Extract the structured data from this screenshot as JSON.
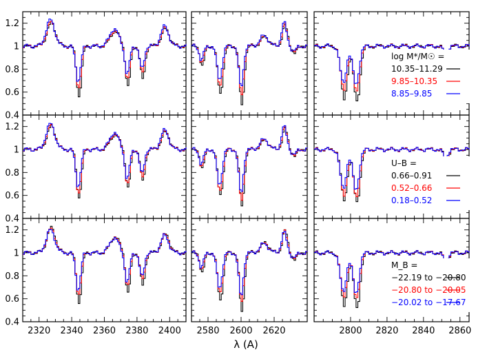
{
  "chart_data": {
    "type": "line",
    "xlabel": "λ (A)",
    "ylabel": "",
    "ylim": [
      0.4,
      1.3
    ],
    "yticks": [
      "0.4",
      "0.6",
      "0.8",
      "1",
      "1.2"
    ],
    "columns": [
      {
        "xlim": [
          2310,
          2410
        ],
        "xticks": [
          2320,
          2340,
          2360,
          2380,
          2400
        ],
        "features": [
          [
            2327,
            0.2,
            2.6
          ],
          [
            2344,
            -0.38,
            1.5
          ],
          [
            2366,
            0.13,
            2.8
          ],
          [
            2374,
            -0.31,
            1.4
          ],
          [
            2383,
            -0.25,
            1.4
          ],
          [
            2397,
            0.15,
            2.4
          ]
        ]
      },
      {
        "xlim": [
          2570,
          2640
        ],
        "xticks": [
          2580,
          2600,
          2620
        ],
        "features": [
          [
            2576,
            -0.15,
            1.3
          ],
          [
            2587,
            -0.36,
            1.6
          ],
          [
            2600,
            -0.45,
            1.4
          ],
          [
            2614,
            0.08,
            2.5
          ],
          [
            2626,
            0.18,
            1.5
          ],
          [
            2632,
            -0.05,
            1.5
          ]
        ]
      },
      {
        "xlim": [
          2780,
          2865
        ],
        "xticks": [
          2800,
          2820,
          2840,
          2860
        ],
        "features": [
          [
            2796,
            -0.4,
            1.7
          ],
          [
            2803,
            -0.42,
            1.7
          ],
          [
            2852,
            -0.1,
            1.2
          ]
        ]
      }
    ],
    "rows": [
      {
        "legend_title": "log M*/M☉ =",
        "series": [
          {
            "name": "10.35–11.29",
            "color": "#000000",
            "depth": 1.15,
            "emission": 0.0
          },
          {
            "name": "9.85–10.35",
            "color": "#ff0000",
            "depth": 0.95,
            "emission": 0.05
          },
          {
            "name": "8.85–9.85",
            "color": "#0000ff",
            "depth": 0.8,
            "emission": 0.15
          }
        ]
      },
      {
        "legend_title": "U–B =",
        "series": [
          {
            "name": "0.66–0.91",
            "color": "#000000",
            "depth": 1.1,
            "emission": 0.0
          },
          {
            "name": "0.52–0.66",
            "color": "#ff0000",
            "depth": 1.0,
            "emission": 0.05
          },
          {
            "name": "0.18–0.52",
            "color": "#0000ff",
            "depth": 0.85,
            "emission": 0.12
          }
        ]
      },
      {
        "legend_title": "M_B =",
        "series": [
          {
            "name": "−22.19 to −20.80",
            "color": "#000000",
            "depth": 1.15,
            "emission": 0.08
          },
          {
            "name": "−20.80 to −20.05",
            "color": "#ff0000",
            "depth": 0.95,
            "emission": 0.04
          },
          {
            "name": "−20.02 to −17.67",
            "color": "#0000ff",
            "depth": 0.85,
            "emission": 0.0
          }
        ]
      }
    ]
  }
}
